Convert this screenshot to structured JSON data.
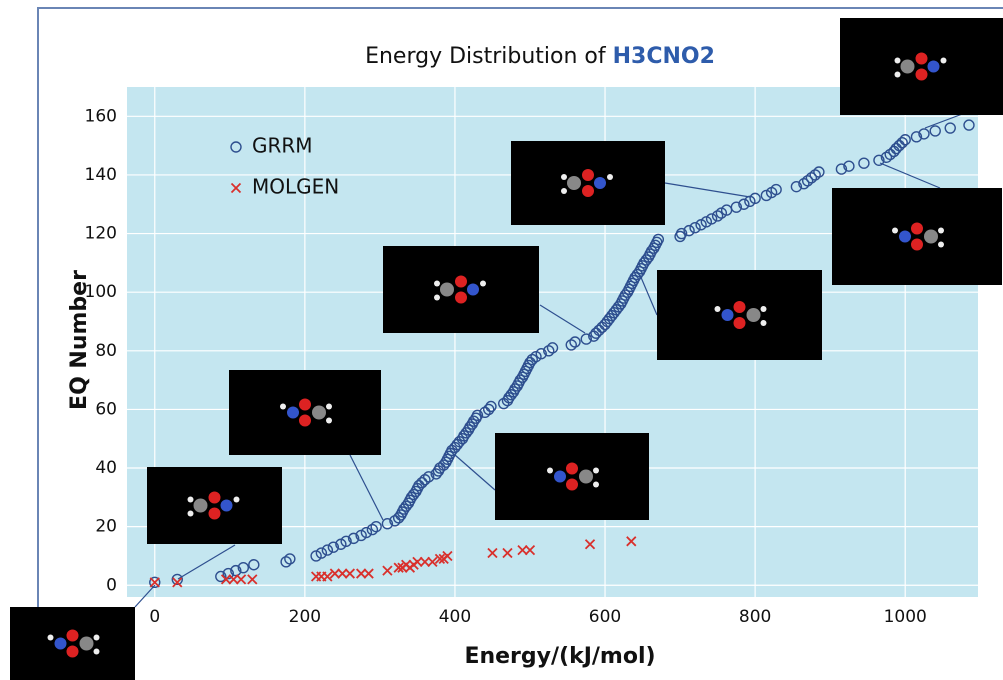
{
  "chart_data": {
    "type": "scatter",
    "title": "Energy Distribution of",
    "title_formula": "H3CNO2",
    "x_label": "Energy/(kJ/mol)",
    "y_label": "EQ Number",
    "xlim": [
      -37,
      1097
    ],
    "ylim": [
      -4,
      170
    ],
    "xticks": [
      0,
      200,
      400,
      600,
      800,
      1000
    ],
    "yticks": [
      0,
      20,
      40,
      60,
      80,
      100,
      120,
      140,
      160
    ],
    "grid": true,
    "legend": "upper left",
    "series": [
      {
        "name": "GRRM",
        "color": "#2e4f8f",
        "marker": "circle",
        "x": [
          0,
          30,
          88,
          98,
          108,
          118,
          132,
          175,
          180,
          215,
          222,
          230,
          238,
          248,
          255,
          265,
          275,
          282,
          290,
          295,
          310,
          320,
          325,
          328,
          330,
          332,
          335,
          338,
          340,
          342,
          345,
          348,
          350,
          352,
          356,
          360,
          365,
          375,
          378,
          380,
          385,
          388,
          390,
          392,
          394,
          396,
          400,
          403,
          406,
          410,
          412,
          415,
          418,
          420,
          423,
          425,
          428,
          430,
          440,
          445,
          448,
          465,
          470,
          472,
          475,
          478,
          480,
          483,
          485,
          487,
          490,
          492,
          494,
          496,
          498,
          500,
          503,
          508,
          515,
          525,
          530,
          555,
          560,
          575,
          585,
          588,
          592,
          596,
          600,
          603,
          606,
          609,
          612,
          615,
          618,
          621,
          623,
          625,
          627,
          630,
          632,
          634,
          636,
          638,
          640,
          643,
          646,
          648,
          650,
          652,
          655,
          658,
          660,
          662,
          665,
          667,
          669,
          671,
          700,
          702,
          712,
          720,
          728,
          735,
          742,
          750,
          755,
          762,
          775,
          785,
          793,
          800,
          815,
          822,
          828,
          855,
          865,
          870,
          875,
          880,
          885,
          915,
          925,
          945,
          965,
          975,
          980,
          985,
          988,
          992,
          996,
          1000,
          1015,
          1025,
          1040,
          1060,
          1085
        ],
        "y": [
          1,
          2,
          3,
          4,
          5,
          6,
          7,
          8,
          9,
          10,
          11,
          12,
          13,
          14,
          15,
          16,
          17,
          18,
          19,
          20,
          21,
          22,
          23,
          24,
          25,
          26,
          27,
          28,
          29,
          30,
          31,
          32,
          33,
          34,
          35,
          36,
          37,
          38,
          39,
          40,
          41,
          42,
          43,
          44,
          45,
          46,
          47,
          48,
          49,
          50,
          51,
          52,
          53,
          54,
          55,
          56,
          57,
          58,
          59,
          60,
          61,
          62,
          63,
          64,
          65,
          66,
          67,
          68,
          69,
          70,
          71,
          72,
          73,
          74,
          75,
          76,
          77,
          78,
          79,
          80,
          81,
          82,
          83,
          84,
          85,
          86,
          87,
          88,
          89,
          90,
          91,
          92,
          93,
          94,
          95,
          96,
          97,
          98,
          99,
          100,
          101,
          102,
          103,
          104,
          105,
          106,
          107,
          108,
          109,
          110,
          111,
          112,
          113,
          114,
          115,
          116,
          117,
          118,
          119,
          120,
          121,
          122,
          123,
          124,
          125,
          126,
          127,
          128,
          129,
          130,
          131,
          132,
          133,
          134,
          135,
          136,
          137,
          138,
          139,
          140,
          141,
          142,
          143,
          144,
          145,
          146,
          147,
          148,
          149,
          150,
          151,
          152,
          153,
          154,
          155,
          156,
          157
        ]
      },
      {
        "name": "MOLGEN",
        "color": "#d9302c",
        "marker": "x",
        "x": [
          0,
          30,
          95,
          105,
          115,
          130,
          215,
          222,
          230,
          240,
          250,
          260,
          275,
          285,
          310,
          325,
          330,
          335,
          340,
          345,
          350,
          360,
          370,
          380,
          385,
          390,
          450,
          470,
          490,
          500,
          580,
          635
        ],
        "y": [
          1,
          1,
          2,
          2,
          2,
          2,
          3,
          3,
          3,
          4,
          4,
          4,
          4,
          4,
          5,
          6,
          6,
          7,
          6,
          7,
          8,
          8,
          8,
          9,
          9,
          10,
          11,
          11,
          12,
          12,
          14,
          15
        ]
      }
    ]
  }
}
